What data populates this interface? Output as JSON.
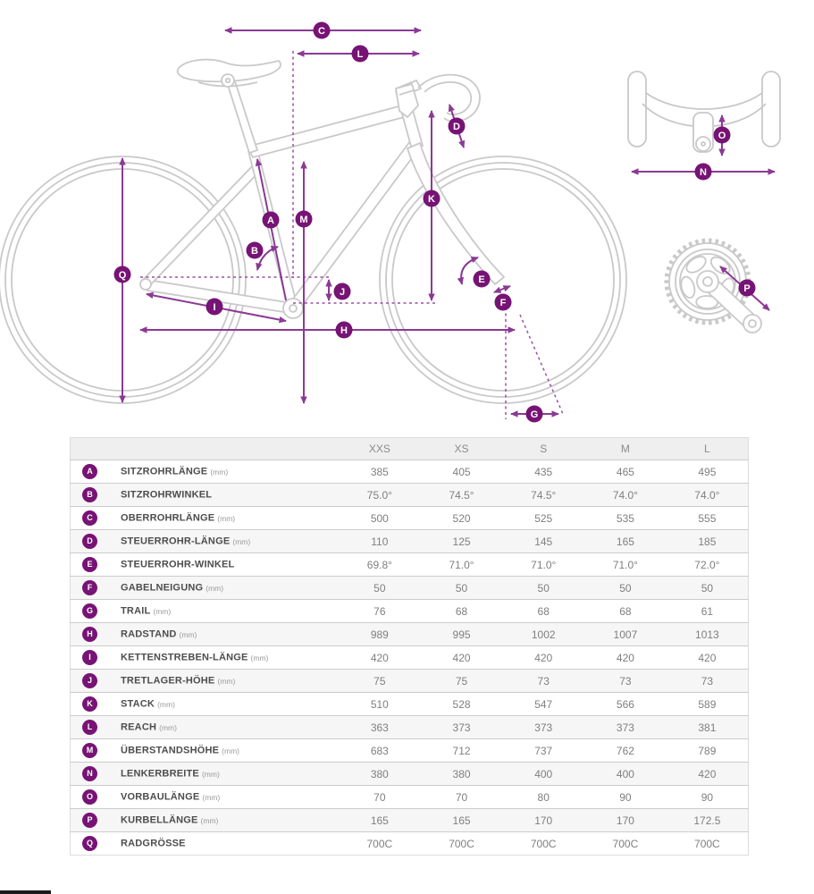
{
  "diagram": {
    "markers": [
      "A",
      "B",
      "C",
      "D",
      "E",
      "F",
      "G",
      "H",
      "I",
      "J",
      "K",
      "L",
      "M",
      "N",
      "O",
      "P",
      "Q"
    ],
    "colors": {
      "accent": "#8b3a94",
      "badge": "#771374",
      "bike_outline": "#c9c9c9"
    }
  },
  "table": {
    "columns": [
      "XXS",
      "XS",
      "S",
      "M",
      "L"
    ],
    "rows": [
      {
        "key": "A",
        "label": "SITZROHRLÄNGE",
        "unit": "(mm)",
        "values": [
          "385",
          "405",
          "435",
          "465",
          "495"
        ]
      },
      {
        "key": "B",
        "label": "SITZROHRWINKEL",
        "unit": "",
        "values": [
          "75.0°",
          "74.5°",
          "74.5°",
          "74.0°",
          "74.0°"
        ]
      },
      {
        "key": "C",
        "label": "OBERROHRLÄNGE",
        "unit": "(mm)",
        "values": [
          "500",
          "520",
          "525",
          "535",
          "555"
        ]
      },
      {
        "key": "D",
        "label": "STEUERROHR-LÄNGE",
        "unit": "(mm)",
        "values": [
          "110",
          "125",
          "145",
          "165",
          "185"
        ]
      },
      {
        "key": "E",
        "label": "STEUERROHR-WINKEL",
        "unit": "",
        "values": [
          "69.8°",
          "71.0°",
          "71.0°",
          "71.0°",
          "72.0°"
        ]
      },
      {
        "key": "F",
        "label": "GABELNEIGUNG",
        "unit": "(mm)",
        "values": [
          "50",
          "50",
          "50",
          "50",
          "50"
        ]
      },
      {
        "key": "G",
        "label": "TRAIL",
        "unit": "(mm)",
        "values": [
          "76",
          "68",
          "68",
          "68",
          "61"
        ]
      },
      {
        "key": "H",
        "label": "RADSTAND",
        "unit": "(mm)",
        "values": [
          "989",
          "995",
          "1002",
          "1007",
          "1013"
        ]
      },
      {
        "key": "I",
        "label": "KETTENSTREBEN-LÄNGE",
        "unit": "(mm)",
        "values": [
          "420",
          "420",
          "420",
          "420",
          "420"
        ]
      },
      {
        "key": "J",
        "label": "TRETLAGER-HÖHE",
        "unit": "(mm)",
        "values": [
          "75",
          "75",
          "73",
          "73",
          "73"
        ]
      },
      {
        "key": "K",
        "label": "STACK",
        "unit": "(mm)",
        "values": [
          "510",
          "528",
          "547",
          "566",
          "589"
        ]
      },
      {
        "key": "L",
        "label": "REACH",
        "unit": "(mm)",
        "values": [
          "363",
          "373",
          "373",
          "373",
          "381"
        ]
      },
      {
        "key": "M",
        "label": "ÜBERSTANDSHÖHE",
        "unit": "(mm)",
        "values": [
          "683",
          "712",
          "737",
          "762",
          "789"
        ]
      },
      {
        "key": "N",
        "label": "LENKERBREITE",
        "unit": "(mm)",
        "values": [
          "380",
          "380",
          "400",
          "400",
          "420"
        ]
      },
      {
        "key": "O",
        "label": "VORBAULÄNGE",
        "unit": "(mm)",
        "values": [
          "70",
          "70",
          "80",
          "90",
          "90"
        ]
      },
      {
        "key": "P",
        "label": "KURBELLÄNGE",
        "unit": "(mm)",
        "values": [
          "165",
          "165",
          "170",
          "170",
          "172.5"
        ]
      },
      {
        "key": "Q",
        "label": "RADGRÖSSE",
        "unit": "",
        "values": [
          "700C",
          "700C",
          "700C",
          "700C",
          "700C"
        ]
      }
    ]
  }
}
